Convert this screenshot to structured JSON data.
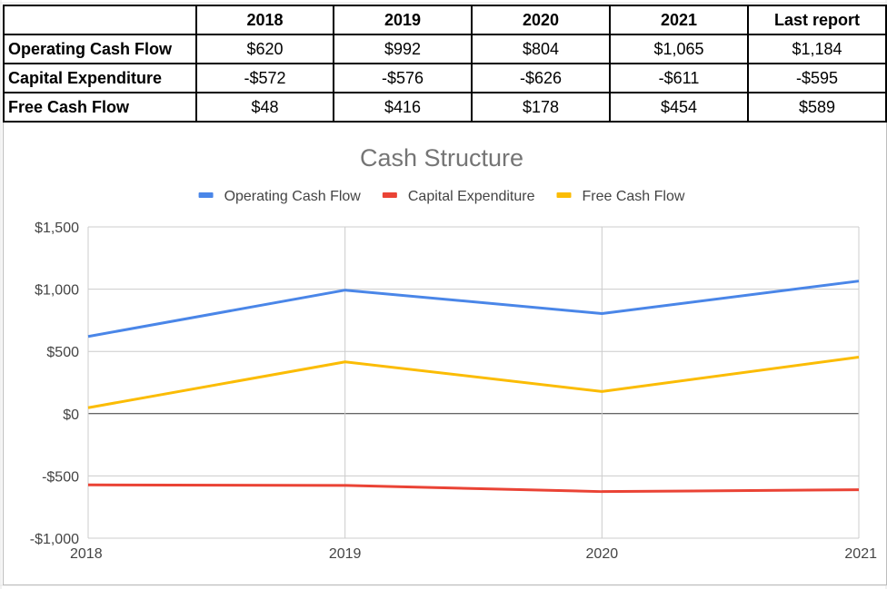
{
  "table": {
    "headers": [
      "",
      "2018",
      "2019",
      "2020",
      "2021",
      "Last report"
    ],
    "rows": [
      {
        "label": "Operating Cash Flow",
        "values": [
          "$620",
          "$992",
          "$804",
          "$1,065",
          "$1,184"
        ]
      },
      {
        "label": "Capital Expenditure",
        "values": [
          "-$572",
          "-$576",
          "-$626",
          "-$611",
          "-$595"
        ]
      },
      {
        "label": "Free Cash Flow",
        "values": [
          "$48",
          "$416",
          "$178",
          "$454",
          "$589"
        ]
      }
    ]
  },
  "chart_data": {
    "type": "line",
    "title": "Cash Structure",
    "x": [
      "2018",
      "2019",
      "2020",
      "2021"
    ],
    "ylim": [
      -1000,
      1500
    ],
    "yticks": [
      1500,
      1000,
      500,
      0,
      -500,
      -1000
    ],
    "ytick_labels": [
      "$1,500",
      "$1,000",
      "$500",
      "$0",
      "-$500",
      "-$1,000"
    ],
    "legend_position": "top",
    "grid": true,
    "series": [
      {
        "name": "Operating Cash Flow",
        "color": "#4a86e8",
        "values": [
          620,
          992,
          804,
          1065
        ]
      },
      {
        "name": "Capital Expenditure",
        "color": "#ea4335",
        "values": [
          -572,
          -576,
          -626,
          -611
        ]
      },
      {
        "name": "Free Cash Flow",
        "color": "#fbbc04",
        "values": [
          48,
          416,
          178,
          454
        ]
      }
    ]
  }
}
